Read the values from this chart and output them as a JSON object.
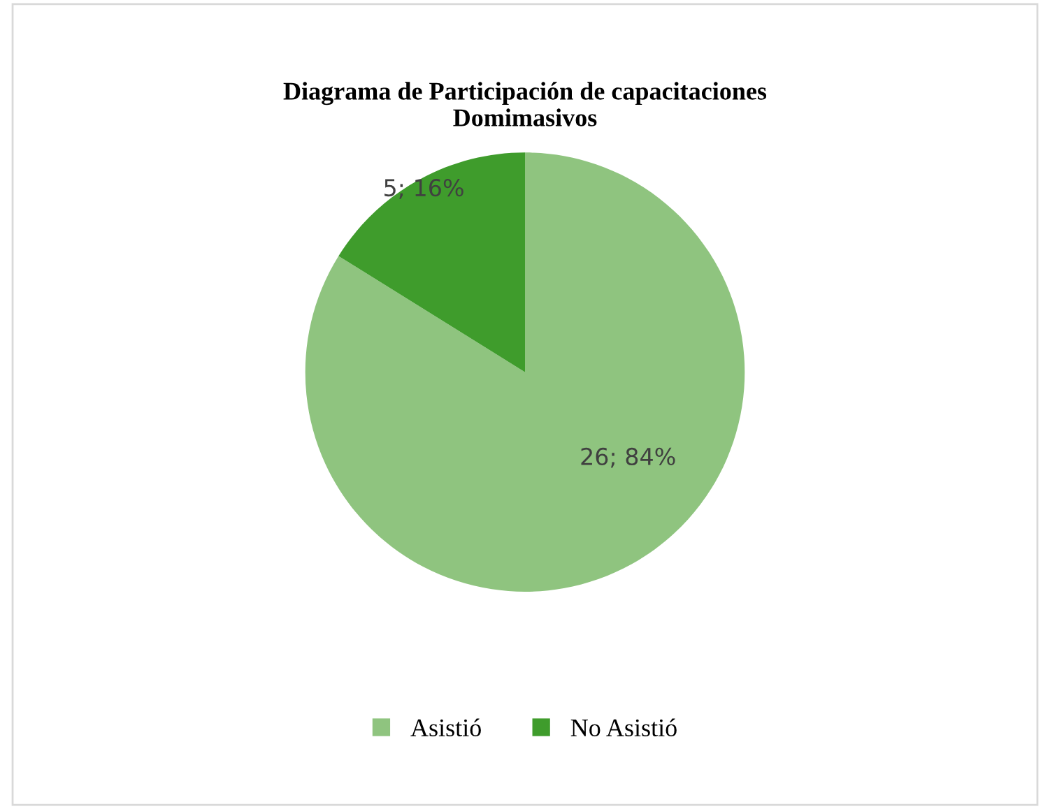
{
  "chart_data": {
    "type": "pie",
    "title": "Diagrama de Participación de capacitaciones\nDomimasivos",
    "categories": [
      "Asistió",
      "No Asistió"
    ],
    "values": [
      26,
      5
    ],
    "value_labels": [
      "26; 84%",
      "5; 16%"
    ],
    "colors": [
      "#8fc47f",
      "#3f9c2c"
    ],
    "legend": "bottom"
  }
}
